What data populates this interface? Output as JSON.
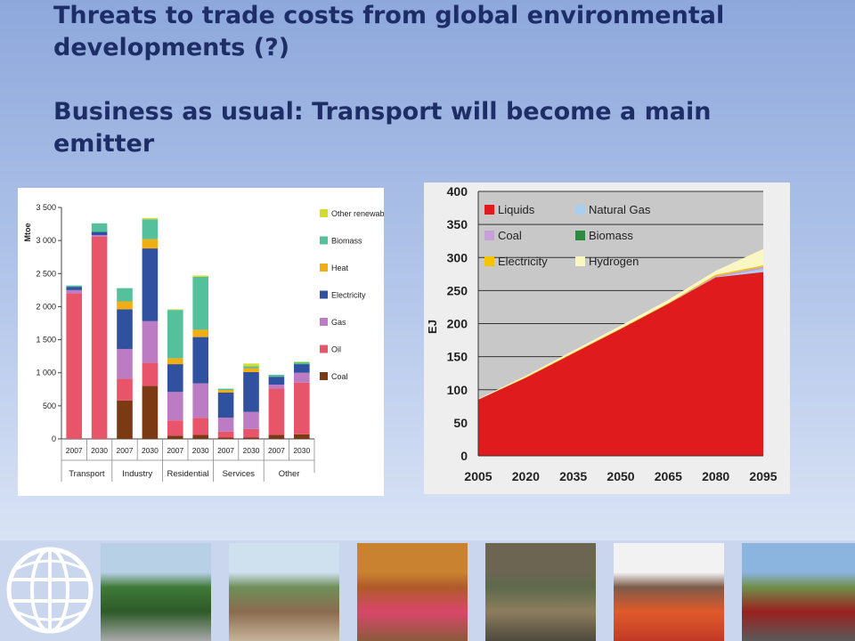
{
  "slide": {
    "title_line1": "Threats to trade costs from global environmental developments (?)",
    "title_line2": "Business as usual: Transport will become a main emitter"
  },
  "chart_data": [
    {
      "type": "bar",
      "stacked": true,
      "ylabel": "Mtoe",
      "ylim": [
        0,
        3500
      ],
      "yticks": [
        "0",
        "500",
        "1 000",
        "1 500",
        "2 000",
        "2 500",
        "3 000",
        "3 500"
      ],
      "ytick_values": [
        0,
        500,
        1000,
        1500,
        2000,
        2500,
        3000,
        3500
      ],
      "categories": [
        "2007",
        "2030",
        "2007",
        "2030",
        "2007",
        "2030",
        "2007",
        "2030",
        "2007",
        "2030"
      ],
      "groups": [
        {
          "label": "Transport",
          "span": [
            0,
            1
          ]
        },
        {
          "label": "Industry",
          "span": [
            2,
            3
          ]
        },
        {
          "label": "Residential",
          "span": [
            4,
            5
          ]
        },
        {
          "label": "Services",
          "span": [
            6,
            7
          ]
        },
        {
          "label": "Other",
          "span": [
            8,
            9
          ]
        }
      ],
      "legend_position": "right",
      "series": [
        {
          "name": "Coal",
          "color": "#7b3a14",
          "values": [
            0,
            0,
            580,
            800,
            50,
            60,
            20,
            20,
            60,
            70
          ]
        },
        {
          "name": "Oil",
          "color": "#e8546a",
          "values": [
            2200,
            3060,
            330,
            350,
            230,
            260,
            90,
            130,
            700,
            780
          ]
        },
        {
          "name": "Gas",
          "color": "#bc7cc4",
          "values": [
            50,
            20,
            450,
            630,
            430,
            520,
            210,
            260,
            60,
            150
          ]
        },
        {
          "name": "Electricity",
          "color": "#3050a0",
          "values": [
            50,
            50,
            600,
            1100,
            420,
            700,
            380,
            600,
            120,
            130
          ]
        },
        {
          "name": "Heat",
          "color": "#f1ae12",
          "values": [
            0,
            0,
            120,
            140,
            90,
            110,
            40,
            60,
            0,
            0
          ]
        },
        {
          "name": "Biomass",
          "color": "#55c19c",
          "values": [
            20,
            130,
            200,
            300,
            730,
            800,
            20,
            30,
            30,
            30
          ]
        },
        {
          "name": "Other renewables",
          "color": "#d4dd2c",
          "values": [
            0,
            0,
            0,
            20,
            10,
            20,
            0,
            40,
            0,
            10
          ]
        }
      ]
    },
    {
      "type": "area",
      "stacked": true,
      "ylabel": "EJ",
      "ylim": [
        0,
        400
      ],
      "yticks": [
        0,
        50,
        100,
        150,
        200,
        250,
        300,
        350,
        400
      ],
      "x": [
        2005,
        2020,
        2035,
        2050,
        2065,
        2080,
        2095
      ],
      "xticks": [
        "2005",
        "2020",
        "2035",
        "2050",
        "2065",
        "2080",
        "2095"
      ],
      "legend_position": "top-left",
      "legend_columns": 2,
      "grid": true,
      "series": [
        {
          "name": "Liquids",
          "color": "#e01b1d",
          "values": [
            85,
            118,
            155,
            192,
            230,
            270,
            278
          ]
        },
        {
          "name": "Natural Gas",
          "color": "#a9cfee",
          "values": [
            0,
            0,
            0,
            0,
            0,
            0,
            5
          ]
        },
        {
          "name": "Coal",
          "color": "#c8a0d8",
          "values": [
            0,
            0,
            0,
            0,
            0,
            2,
            3
          ]
        },
        {
          "name": "Biomass",
          "color": "#2e8a3e",
          "values": [
            0,
            0,
            0,
            0,
            0,
            0,
            0
          ]
        },
        {
          "name": "Electricity",
          "color": "#f5c400",
          "values": [
            0,
            1,
            1,
            1,
            1,
            2,
            2
          ]
        },
        {
          "name": "Hydrogen",
          "color": "#fbf7c4",
          "values": [
            1,
            2,
            3,
            4,
            5,
            6,
            25
          ]
        }
      ]
    }
  ],
  "photos": [
    {
      "name": "photo-truck-road",
      "colors": [
        "#b8d0e6",
        "#3f7a38",
        "#2e5a28",
        "#a9a9a9"
      ]
    },
    {
      "name": "photo-workers-sacks",
      "colors": [
        "#cfe0ee",
        "#6f8f5a",
        "#8a6b4f",
        "#c7b39b"
      ]
    },
    {
      "name": "photo-man-red-headscarf",
      "colors": [
        "#c9822f",
        "#b05b2a",
        "#d9476b",
        "#8b5a3c"
      ]
    },
    {
      "name": "photo-traffic-street",
      "colors": [
        "#6c6552",
        "#5d6a4b",
        "#8d7d60",
        "#4d4a3c"
      ]
    },
    {
      "name": "photo-market-stalls",
      "colors": [
        "#f2f2f2",
        "#7c5b4a",
        "#e05a2a",
        "#c23a26"
      ]
    },
    {
      "name": "photo-truck-highway",
      "colors": [
        "#8bb4de",
        "#6f8f4a",
        "#9a2020",
        "#5a5a5a"
      ]
    }
  ]
}
